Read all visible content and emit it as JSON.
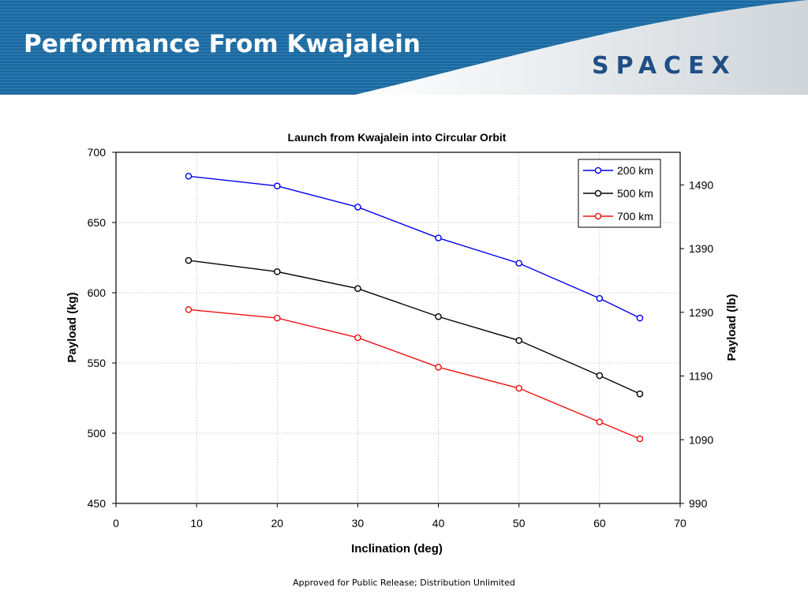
{
  "slide": {
    "title": "Performance From Kwajalein",
    "logo_text": "SPACEX",
    "footer": "Approved for Public Release; Distribution Unlimited",
    "colors": {
      "banner_dark": "#1e6fa6",
      "banner_stripe": "#3b8cc2",
      "banner_swoosh": "#d9dde0",
      "logo": "#1f4f85"
    }
  },
  "chart_data": {
    "type": "line",
    "title": "Launch from Kwajalein into Circular Orbit",
    "xlabel": "Inclination (deg)",
    "ylabel": "Payload (kg)",
    "ylabel_right": "Payload (lb)",
    "xlim": [
      0,
      70
    ],
    "ylim": [
      450,
      700
    ],
    "ylim_right_lb": [
      990,
      1541.15
    ],
    "x_ticks": [
      0,
      10,
      20,
      30,
      40,
      50,
      60,
      70
    ],
    "y_ticks": [
      450,
      500,
      550,
      600,
      650,
      700
    ],
    "y_right_ticks": [
      990,
      1090,
      1190,
      1290,
      1390,
      1490
    ],
    "grid": true,
    "legend": "top-right",
    "series": [
      {
        "name": "200 km",
        "color": "#0000ee",
        "x": [
          9,
          20,
          30,
          40,
          50,
          60,
          65
        ],
        "y": [
          683,
          676,
          661,
          639,
          621,
          596,
          582
        ]
      },
      {
        "name": "500 km",
        "color": "#000000",
        "x": [
          9,
          20,
          30,
          40,
          50,
          60,
          65
        ],
        "y": [
          623,
          615,
          603,
          583,
          566,
          541,
          528
        ]
      },
      {
        "name": "700 km",
        "color": "#ee1111",
        "x": [
          9,
          20,
          30,
          40,
          50,
          60,
          65
        ],
        "y": [
          588,
          582,
          568,
          547,
          532,
          508,
          496
        ]
      }
    ]
  }
}
